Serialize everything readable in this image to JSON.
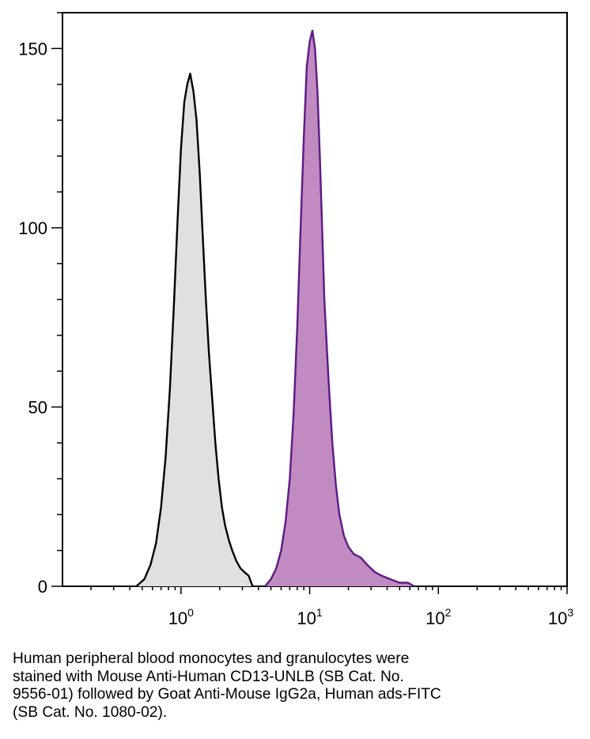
{
  "chart_data": {
    "type": "area",
    "title": "",
    "xlabel": "",
    "ylabel": "",
    "xscale": "log",
    "xlim": [
      0.12,
      1000
    ],
    "ylim": [
      0,
      160
    ],
    "grid": false,
    "x_ticks": [
      {
        "value": 1,
        "base": "10",
        "exp": "0"
      },
      {
        "value": 10,
        "base": "10",
        "exp": "1"
      },
      {
        "value": 100,
        "base": "10",
        "exp": "2"
      },
      {
        "value": 1000,
        "base": "10",
        "exp": "3"
      }
    ],
    "y_ticks": [
      {
        "value": 0,
        "label": "0"
      },
      {
        "value": 50,
        "label": "50"
      },
      {
        "value": 100,
        "label": "100"
      },
      {
        "value": 150,
        "label": "150"
      }
    ],
    "series": [
      {
        "color": "#000000",
        "fill": "#e0e0e0",
        "x": [
          0.45,
          0.52,
          0.58,
          0.64,
          0.7,
          0.76,
          0.82,
          0.88,
          0.94,
          1.0,
          1.06,
          1.12,
          1.18,
          1.25,
          1.32,
          1.4,
          1.48,
          1.56,
          1.65,
          1.75,
          1.85,
          1.96,
          2.08,
          2.2,
          2.35,
          2.5,
          2.7,
          2.9,
          3.1,
          3.35,
          3.6
        ],
        "y": [
          0,
          2,
          6,
          12,
          22,
          36,
          55,
          78,
          102,
          122,
          135,
          140,
          143,
          138,
          130,
          115,
          97,
          80,
          65,
          52,
          40,
          30,
          22,
          17,
          13,
          10,
          7,
          5,
          4,
          3,
          0
        ]
      },
      {
        "color": "#5c1a85",
        "fill": "#c18ac1",
        "x": [
          4.5,
          5.0,
          5.5,
          6.0,
          6.5,
          7.0,
          7.5,
          8.0,
          8.5,
          9.0,
          9.5,
          10.0,
          10.5,
          11.0,
          11.5,
          12.0,
          12.5,
          13.0,
          14.0,
          15.0,
          16.0,
          17.0,
          18.5,
          20.0,
          22.0,
          25.0,
          28.0,
          32.0,
          36.0,
          42.0,
          50.0,
          58.0,
          65.0
        ],
        "y": [
          0,
          2,
          5,
          10,
          18,
          30,
          48,
          72,
          100,
          125,
          145,
          152,
          155,
          150,
          138,
          120,
          100,
          80,
          58,
          40,
          28,
          20,
          14,
          11,
          9,
          8,
          6,
          4,
          3,
          2,
          1,
          1,
          0
        ]
      }
    ]
  },
  "caption": {
    "lines": [
      "Human peripheral blood monocytes and granulocytes were",
      "stained with Mouse Anti-Human CD13-UNLB (SB Cat. No.",
      "9556-01) followed by Goat Anti-Mouse IgG2a, Human ads-FITC",
      "(SB Cat. No. 1080-02)."
    ]
  }
}
